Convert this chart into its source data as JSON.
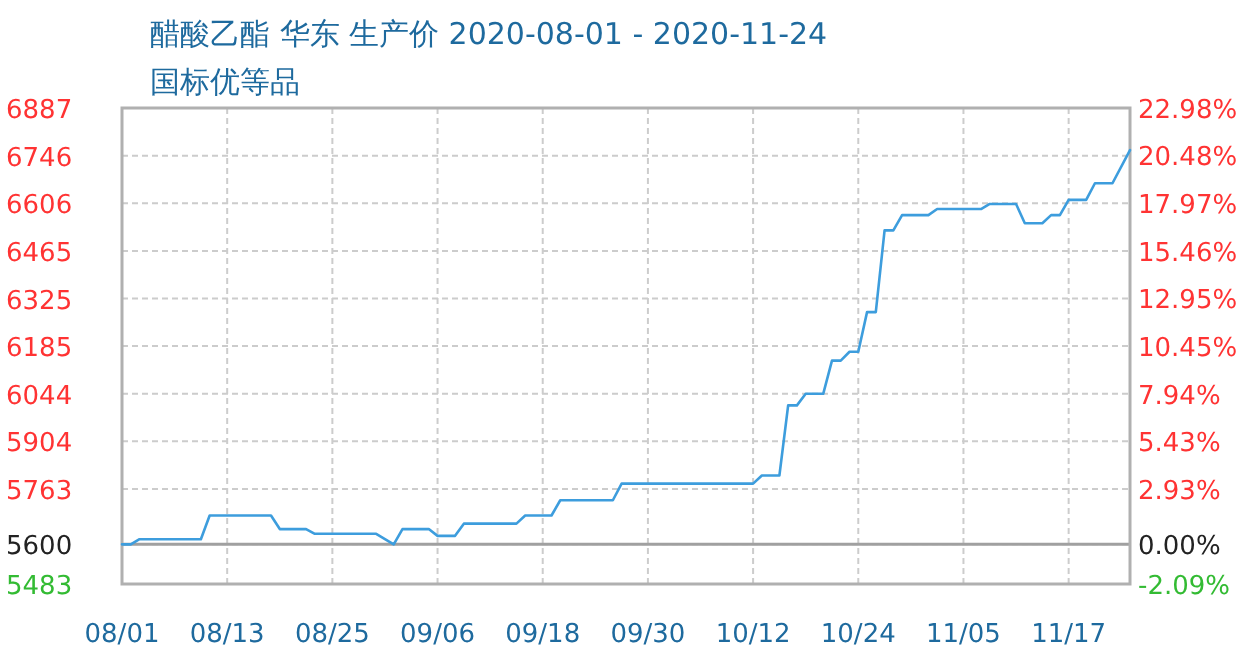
{
  "chart_data": {
    "type": "line",
    "title": "醋酸乙酯 华东 生产价 2020-08-01 - 2020-11-24",
    "subtitle": "国标优等品",
    "series": [
      {
        "color": "#3d9ddd",
        "x": [
          "2020-08-01",
          "2020-08-02",
          "2020-08-03",
          "2020-08-10",
          "2020-08-11",
          "2020-08-18",
          "2020-08-19",
          "2020-08-22",
          "2020-08-23",
          "2020-08-30",
          "2020-09-01",
          "2020-09-02",
          "2020-09-05",
          "2020-09-06",
          "2020-09-08",
          "2020-09-09",
          "2020-09-15",
          "2020-09-16",
          "2020-09-19",
          "2020-09-20",
          "2020-09-26",
          "2020-09-27",
          "2020-10-12",
          "2020-10-13",
          "2020-10-15",
          "2020-10-16",
          "2020-10-17",
          "2020-10-18",
          "2020-10-20",
          "2020-10-21",
          "2020-10-22",
          "2020-10-23",
          "2020-10-24",
          "2020-10-25",
          "2020-10-26",
          "2020-10-27",
          "2020-10-28",
          "2020-10-29",
          "2020-11-01",
          "2020-11-02",
          "2020-11-07",
          "2020-11-08",
          "2020-11-11",
          "2020-11-12",
          "2020-11-14",
          "2020-11-15",
          "2020-11-16",
          "2020-11-17",
          "2020-11-19",
          "2020-11-20",
          "2020-11-22",
          "2020-11-24"
        ],
        "values": [
          5600,
          5600,
          5615,
          5615,
          5685,
          5685,
          5645,
          5645,
          5631,
          5631,
          5600,
          5645,
          5645,
          5625,
          5625,
          5661,
          5661,
          5685,
          5685,
          5730,
          5730,
          5779,
          5779,
          5803,
          5803,
          6010,
          6010,
          6044,
          6044,
          6142,
          6142,
          6168,
          6168,
          6285,
          6285,
          6526,
          6526,
          6571,
          6571,
          6589,
          6589,
          6604,
          6604,
          6547,
          6547,
          6571,
          6571,
          6616,
          6616,
          6665,
          6665,
          6763
        ]
      }
    ],
    "xlim": [
      "2020-08-01",
      "2020-11-24"
    ],
    "xticks": [
      {
        "value": "2020-08-01",
        "label": "08/01"
      },
      {
        "value": "2020-08-13",
        "label": "08/13"
      },
      {
        "value": "2020-08-25",
        "label": "08/25"
      },
      {
        "value": "2020-09-06",
        "label": "09/06"
      },
      {
        "value": "2020-09-18",
        "label": "09/18"
      },
      {
        "value": "2020-09-30",
        "label": "09/30"
      },
      {
        "value": "2020-10-12",
        "label": "10/12"
      },
      {
        "value": "2020-10-24",
        "label": "10/24"
      },
      {
        "value": "2020-11-05",
        "label": "11/05"
      },
      {
        "value": "2020-11-17",
        "label": "11/17"
      }
    ],
    "ylim": [
      5483,
      6887
    ],
    "yticks": [
      5483,
      5600,
      5763,
      5904,
      6044,
      6185,
      6325,
      6465,
      6606,
      6746,
      6887
    ],
    "y2lim": [
      -2.09,
      22.98
    ],
    "y2ticks": [
      {
        "value": -2.09,
        "label": "-2.09%"
      },
      {
        "value": 0,
        "label": "0.00%"
      },
      {
        "value": 2.93,
        "label": "2.93%"
      },
      {
        "value": 5.43,
        "label": "5.43%"
      },
      {
        "value": 7.94,
        "label": "7.94%"
      },
      {
        "value": 10.45,
        "label": "10.45%"
      },
      {
        "value": 12.95,
        "label": "12.95%"
      },
      {
        "value": 15.46,
        "label": "15.46%"
      },
      {
        "value": 17.97,
        "label": "17.97%"
      },
      {
        "value": 20.48,
        "label": "20.48%"
      },
      {
        "value": 22.98,
        "label": "22.98%"
      }
    ],
    "ref_lines": [
      {
        "axis": "y",
        "value": 5600,
        "color": "#a0a0a0",
        "line_style": "solid"
      }
    ],
    "grid": true
  }
}
